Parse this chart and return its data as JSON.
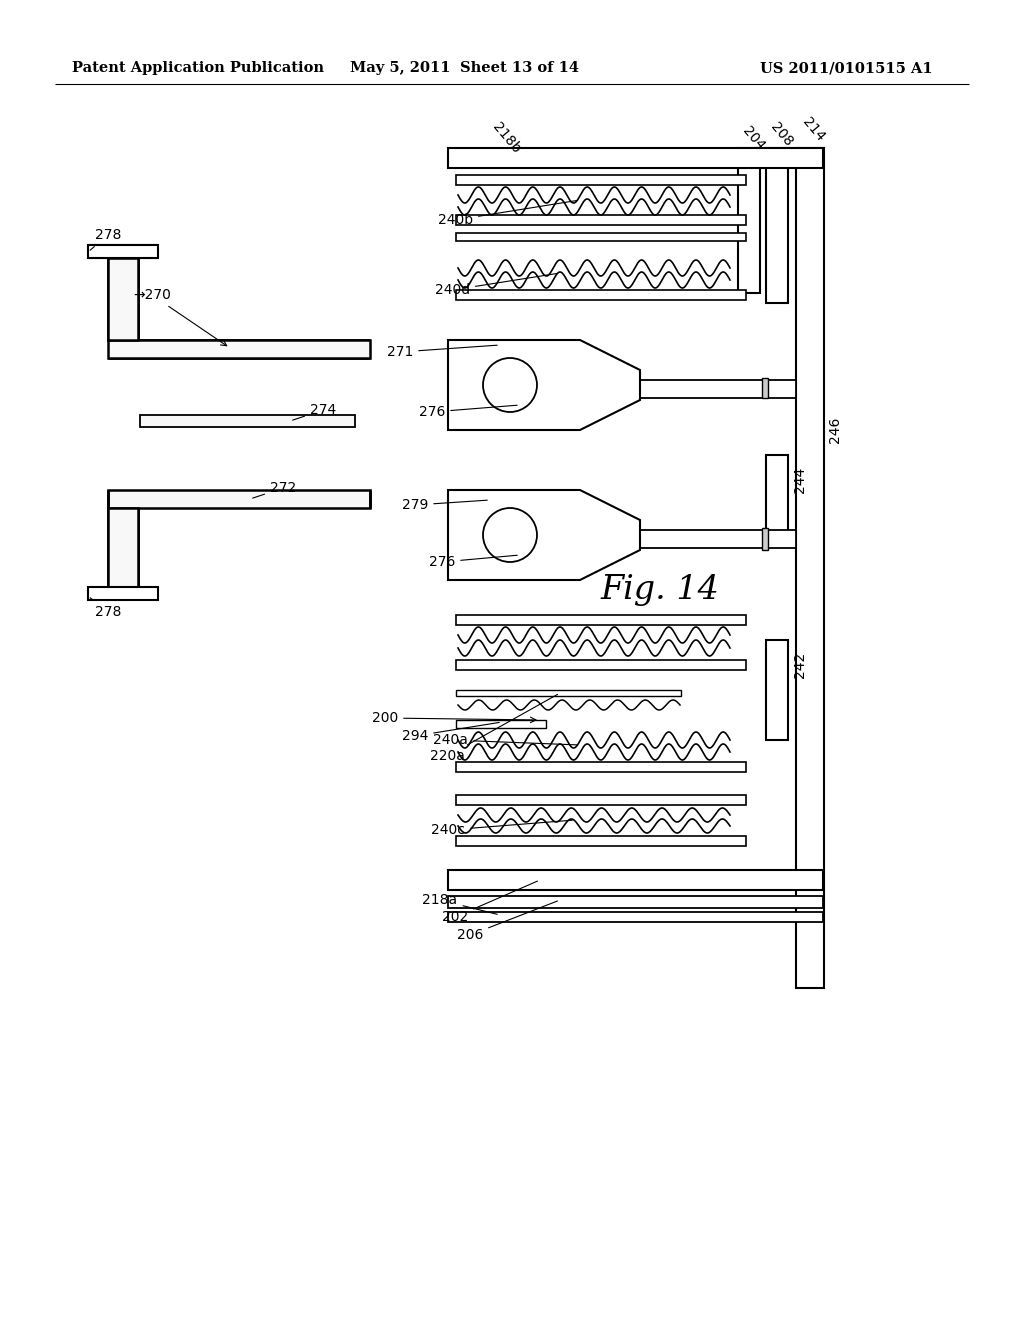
{
  "header_left": "Patent Application Publication",
  "header_mid": "May 5, 2011   Sheet 13 of 14",
  "header_right": "US 2011/0101515 A1",
  "fig_label": "Fig. 14",
  "bg_color": "#ffffff",
  "line_color": "#000000",
  "header_fontsize": 10.5,
  "fig_label_fontsize": 24,
  "annotation_fontsize": 10,
  "scale": 1.0
}
